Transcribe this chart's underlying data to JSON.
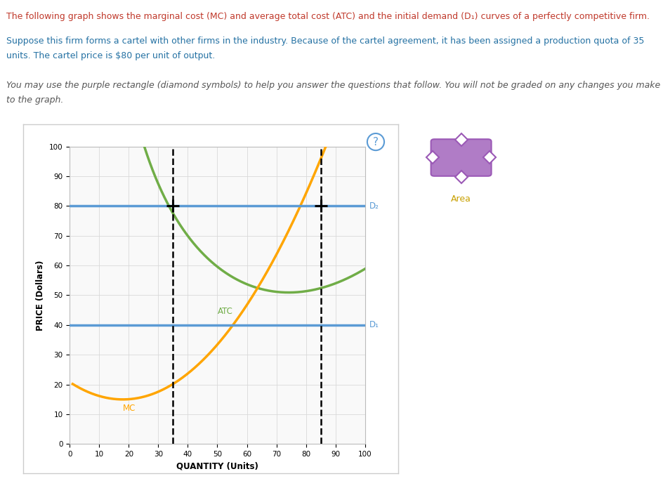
{
  "xlim": [
    0,
    100
  ],
  "ylim": [
    0,
    100
  ],
  "xlabel": "QUANTITY (Units)",
  "ylabel": "PRICE (Dollars)",
  "xticks": [
    0,
    10,
    20,
    30,
    40,
    50,
    60,
    70,
    80,
    90,
    100
  ],
  "yticks": [
    0,
    10,
    20,
    30,
    40,
    50,
    60,
    70,
    80,
    90,
    100
  ],
  "d1_y": 40,
  "d2_y": 80,
  "d1_color": "#5b9bd5",
  "d2_color": "#5b9bd5",
  "mc_color": "#ffa500",
  "atc_color": "#70ad47",
  "dashed_x1": 35,
  "dashed_x2": 85,
  "dashed_y": 80,
  "purple_color": "#9b59b6",
  "purple_fill": "#b07cc6",
  "area_label_color": "#c8a000",
  "background_color": "#ffffff",
  "grid_color": "#d9d9d9",
  "text_line1_color": "#c0392b",
  "text_line2_color": "#2471a3",
  "text_line3_color": "#555555",
  "rule_color": "#c8b560",
  "panel_border_color": "#cccccc",
  "panel_bg": "#f9f9f9"
}
